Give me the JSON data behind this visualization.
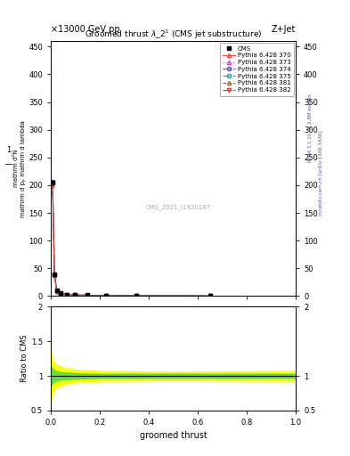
{
  "title": "Groomed thrust λ_2¹ (CMS jet substructure)",
  "header_left": "×13000 GeV pp",
  "header_right": "Z+Jet",
  "watermark": "CMS_2021_I1920187",
  "ylim_main": [
    0,
    460
  ],
  "ylim_ratio": [
    0.5,
    2.0
  ],
  "xlim": [
    0.0,
    1.0
  ],
  "main_yticks": [
    0,
    50,
    100,
    150,
    200,
    250,
    300,
    350,
    400,
    450
  ],
  "cms_data_x": [
    0.0025,
    0.0075,
    0.015,
    0.025,
    0.04,
    0.065,
    0.1,
    0.15,
    0.225,
    0.35,
    0.65
  ],
  "cms_data_y": [
    205,
    205,
    40,
    10,
    5,
    3,
    2,
    1.5,
    1.2,
    0.8,
    0.3
  ],
  "pythia_x": [
    0.0025,
    0.0075,
    0.015,
    0.025,
    0.04,
    0.065,
    0.1,
    0.15,
    0.225,
    0.35,
    0.65
  ],
  "pythia_lines": [
    {
      "label": "Pythia 6.428 370",
      "color": "#ff4444",
      "style": "-",
      "marker": "^",
      "mfc": "none",
      "y": [
        200,
        205,
        38,
        9,
        4.5,
        2.8,
        2.0,
        1.4,
        1.1,
        0.75,
        0.28
      ]
    },
    {
      "label": "Pythia 6.428 373",
      "color": "#cc44cc",
      "style": ":",
      "marker": "^",
      "mfc": "none",
      "y": [
        203,
        206,
        39,
        9.5,
        4.7,
        2.9,
        2.0,
        1.45,
        1.15,
        0.77,
        0.29
      ]
    },
    {
      "label": "Pythia 6.428 374",
      "color": "#4444ff",
      "style": "--",
      "marker": "o",
      "mfc": "none",
      "y": [
        204,
        206,
        39,
        9.5,
        4.6,
        2.85,
        2.0,
        1.42,
        1.12,
        0.76,
        0.28
      ]
    },
    {
      "label": "Pythia 6.428 375",
      "color": "#00aaaa",
      "style": "-.",
      "marker": "o",
      "mfc": "none",
      "y": [
        203,
        205,
        38.5,
        9.3,
        4.5,
        2.82,
        1.98,
        1.41,
        1.11,
        0.75,
        0.27
      ]
    },
    {
      "label": "Pythia 6.428 381",
      "color": "#aa6622",
      "style": "--",
      "marker": "^",
      "mfc": "none",
      "y": [
        202,
        204,
        38,
        9.2,
        4.4,
        2.8,
        1.95,
        1.4,
        1.1,
        0.74,
        0.27
      ]
    },
    {
      "label": "Pythia 6.428 382",
      "color": "#ff2222",
      "style": "-.",
      "marker": "v",
      "mfc": "none",
      "y": [
        201,
        204,
        38,
        9.1,
        4.4,
        2.78,
        1.93,
        1.38,
        1.09,
        0.73,
        0.26
      ]
    }
  ],
  "ratio_yellow_x": [
    0.0,
    0.005,
    0.01,
    0.02,
    0.05,
    0.1,
    0.2,
    0.5,
    1.0
  ],
  "ratio_yellow_lo": [
    0.65,
    0.72,
    0.78,
    0.83,
    0.88,
    0.91,
    0.93,
    0.94,
    0.93
  ],
  "ratio_yellow_hi": [
    1.35,
    1.28,
    1.22,
    1.17,
    1.12,
    1.09,
    1.07,
    1.06,
    1.07
  ],
  "ratio_green_x": [
    0.0,
    0.005,
    0.01,
    0.02,
    0.05,
    0.1,
    0.2,
    0.5,
    1.0
  ],
  "ratio_green_lo": [
    0.85,
    0.88,
    0.91,
    0.93,
    0.95,
    0.96,
    0.97,
    0.97,
    0.97
  ],
  "ratio_green_hi": [
    1.15,
    1.12,
    1.09,
    1.07,
    1.05,
    1.04,
    1.03,
    1.03,
    1.03
  ],
  "figsize": [
    3.93,
    5.12
  ],
  "dpi": 100,
  "bg": "#ffffff"
}
